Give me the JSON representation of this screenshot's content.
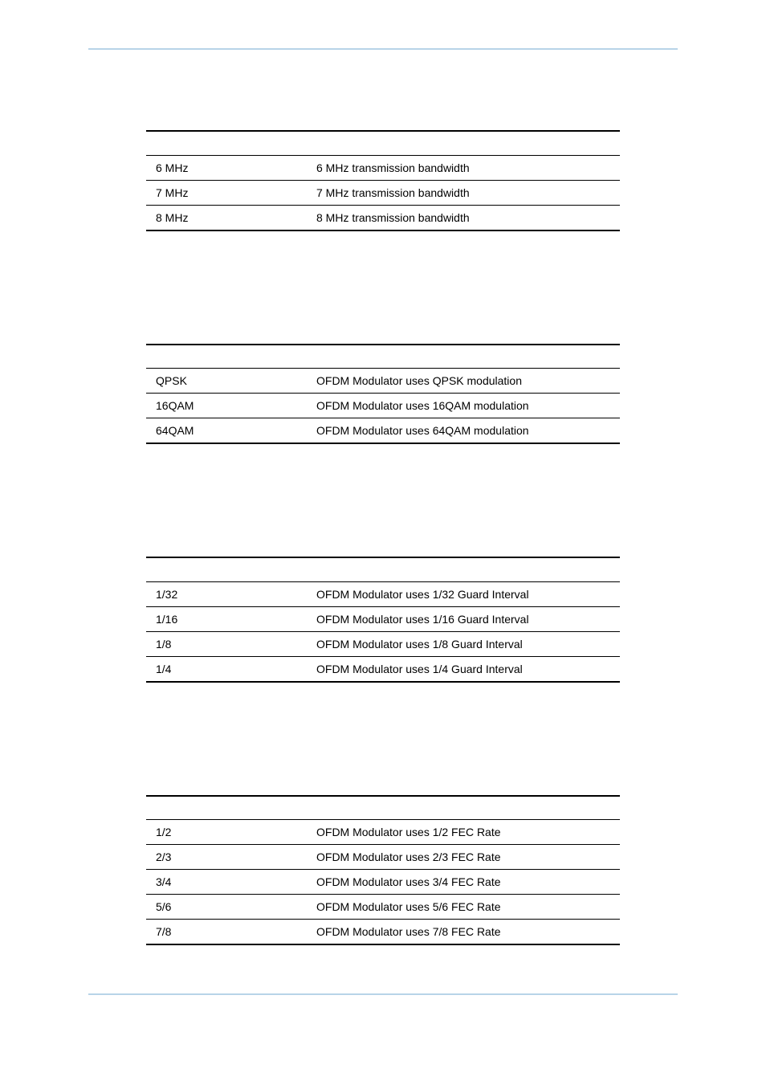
{
  "tables": [
    {
      "rows": [
        {
          "col1": "6 MHz",
          "col2": "6 MHz transmission bandwidth"
        },
        {
          "col1": "7 MHz",
          "col2": "7 MHz transmission bandwidth"
        },
        {
          "col1": "8 MHz",
          "col2": "8 MHz transmission bandwidth"
        }
      ]
    },
    {
      "rows": [
        {
          "col1": "QPSK",
          "col2": "OFDM Modulator uses QPSK modulation"
        },
        {
          "col1": "16QAM",
          "col2": "OFDM Modulator uses 16QAM modulation"
        },
        {
          "col1": "64QAM",
          "col2": "OFDM Modulator uses 64QAM modulation"
        }
      ]
    },
    {
      "rows": [
        {
          "col1": "1/32",
          "col2": "OFDM Modulator uses 1/32 Guard Interval"
        },
        {
          "col1": "1/16",
          "col2": "OFDM Modulator uses 1/16 Guard Interval"
        },
        {
          "col1": "1/8",
          "col2": "OFDM Modulator uses 1/8 Guard Interval"
        },
        {
          "col1": "1/4",
          "col2": "OFDM Modulator uses 1/4 Guard Interval"
        }
      ]
    },
    {
      "rows": [
        {
          "col1": "1/2",
          "col2": "OFDM Modulator uses 1/2 FEC Rate"
        },
        {
          "col1": "2/3",
          "col2": "OFDM Modulator uses 2/3 FEC Rate"
        },
        {
          "col1": "3/4",
          "col2": "OFDM Modulator uses 3/4 FEC Rate"
        },
        {
          "col1": "5/6",
          "col2": "OFDM Modulator uses 5/6 FEC Rate"
        },
        {
          "col1": "7/8",
          "col2": "OFDM Modulator uses 7/8 FEC Rate"
        }
      ]
    }
  ]
}
